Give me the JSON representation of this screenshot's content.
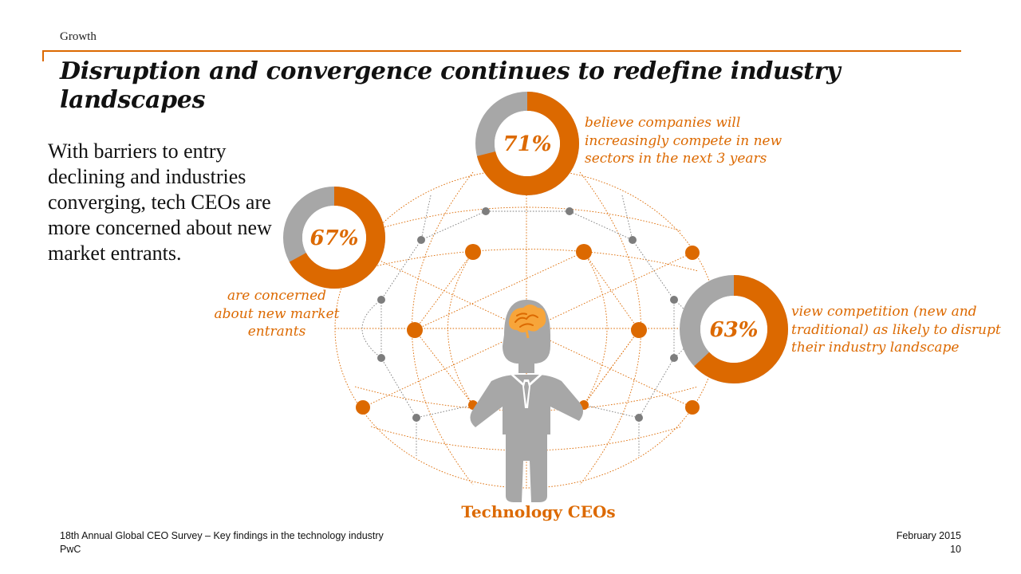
{
  "header": {
    "section": "Growth"
  },
  "title": "Disruption and convergence continues to redefine industry landscapes",
  "intro_text": "With barriers to entry declining and industries converging, tech CEOs are more concerned about new market entrants.",
  "caption": "Technology CEOs",
  "colors": {
    "accent": "#dc6900",
    "remainder": "#a7a7a7",
    "node_gray": "#7d7d7d",
    "figure": "#a7a7a7"
  },
  "icons": {
    "figure": "businessman-icon",
    "brain": "brain-icon"
  },
  "chart_data": {
    "type": "pie",
    "variant": "donut",
    "items": [
      {
        "value": 71,
        "display": "71%",
        "label": "believe companies will increasingly compete in new sectors in the next 3 years"
      },
      {
        "value": 67,
        "display": "67%",
        "label": "are concerned about new market entrants"
      },
      {
        "value": 63,
        "display": "63%",
        "label": "view competition (new and traditional) as likely to disrupt their industry landscape"
      }
    ]
  },
  "footer": {
    "survey": "18th Annual Global CEO Survey – Key findings in the technology industry",
    "company": "PwC",
    "date": "February 2015",
    "page": "10"
  }
}
